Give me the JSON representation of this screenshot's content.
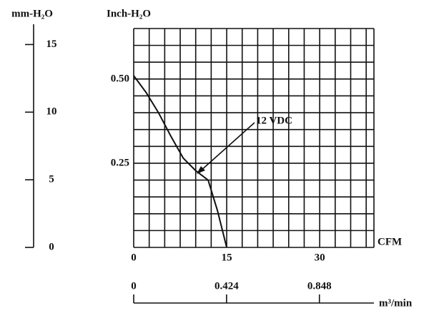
{
  "chart_data": {
    "type": "line",
    "y2_label": "mm-H₂O",
    "y_label": "Inch-H₂O",
    "x_label": "CFM",
    "x2_label": "m³/min",
    "annotation": "12 VDC",
    "xlim": [
      0,
      38.75
    ],
    "ylim": [
      0,
      0.65
    ],
    "y2lim": [
      0,
      16.5
    ],
    "x2lim": [
      0,
      1.097
    ],
    "xticks": [
      0,
      15,
      30
    ],
    "yticks": [
      0.25,
      {
        "value": 0.5,
        "label": "0.50"
      }
    ],
    "y2ticks": [
      0,
      5,
      10,
      15
    ],
    "x2ticks": [
      0,
      0.424,
      0.848
    ],
    "grid": true,
    "xgrid": [
      0,
      2.5,
      5,
      7.5,
      10,
      12.5,
      15,
      17.5,
      20,
      22.5,
      25,
      27.5,
      30,
      32.5,
      35,
      37.5,
      38.75
    ],
    "ygrid": [
      0,
      0.05,
      0.1,
      0.15,
      0.2,
      0.25,
      0.3,
      0.35,
      0.4,
      0.45,
      0.5,
      0.55,
      0.6,
      0.65
    ],
    "series": [
      {
        "name": "12 VDC",
        "color": "#111111",
        "x": [
          0,
          2,
          4,
          6,
          8,
          10,
          12,
          13.5,
          15
        ],
        "values": [
          0.51,
          0.46,
          0.4,
          0.33,
          0.265,
          0.228,
          0.2,
          0.11,
          0
        ]
      }
    ]
  }
}
